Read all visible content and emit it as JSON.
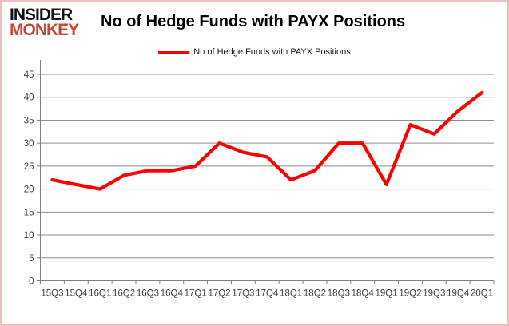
{
  "logo": {
    "line1": "INSIDER",
    "line2": "MONKEY"
  },
  "header": {
    "title": "No of Hedge Funds with PAYX Positions"
  },
  "legend": {
    "label": "No of Hedge Funds with PAYX Positions"
  },
  "colors": {
    "line": "#fe0000",
    "logo_red": "#c84634",
    "logo_black": "#111111",
    "grid": "#8e8e8e",
    "axis": "#808080",
    "tick_text": "#404040",
    "border": "#f2bdbd",
    "background": "#ffffff"
  },
  "chart_data": {
    "type": "line",
    "title": "No of Hedge Funds with PAYX Positions",
    "categories": [
      "15Q3",
      "15Q4",
      "16Q1",
      "16Q2",
      "16Q3",
      "16Q4",
      "17Q1",
      "17Q2",
      "17Q3",
      "17Q4",
      "18Q1",
      "18Q2",
      "18Q3",
      "18Q4",
      "19Q1",
      "19Q2",
      "19Q3",
      "19Q4",
      "20Q1"
    ],
    "series": [
      {
        "name": "No of Hedge Funds with PAYX Positions",
        "values": [
          22,
          21,
          20,
          23,
          24,
          24,
          25,
          30,
          28,
          27,
          22,
          24,
          30,
          30,
          21,
          34,
          32,
          37,
          41
        ]
      }
    ],
    "xlabel": "",
    "ylabel": "",
    "ylim": [
      0,
      45
    ],
    "yticks": [
      0,
      5,
      10,
      15,
      20,
      25,
      30,
      35,
      40,
      45
    ],
    "grid": true,
    "legend_position": "top-center",
    "line_color": "#fe0000"
  }
}
